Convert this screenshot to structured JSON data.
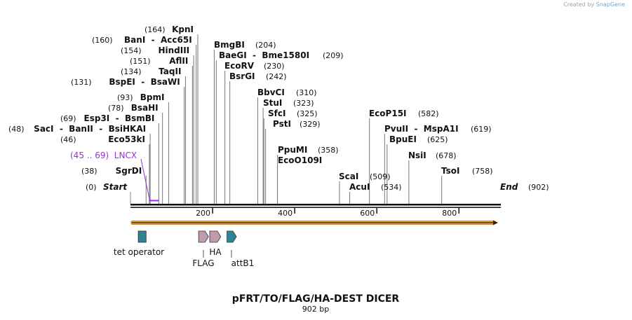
{
  "watermark": {
    "prefix": "Created by",
    "brand": "SnapGene"
  },
  "plasmid": {
    "name": "pFRT/TO/FLAG/HA-DEST DICER",
    "length_label": "902 bp",
    "start_label": "Start",
    "end_label": "End",
    "start_pos": "(0)",
    "end_pos": "(902)"
  },
  "ruler": {
    "ticks": [
      {
        "pos": 200,
        "label": "200"
      },
      {
        "pos": 400,
        "label": "400"
      },
      {
        "pos": 600,
        "label": "600"
      },
      {
        "pos": 800,
        "label": "800"
      }
    ]
  },
  "sites": [
    {
      "id": "kpni",
      "pos": 164,
      "pos_label": "(164)",
      "name": "KpnI"
    },
    {
      "id": "bani",
      "pos": 160,
      "pos_label": "(160)",
      "name": "BanI  -  Acc65I"
    },
    {
      "id": "hindiii",
      "pos": 154,
      "pos_label": "(154)",
      "name": "HindIII"
    },
    {
      "id": "aflii",
      "pos": 151,
      "pos_label": "(151)",
      "name": "AflII"
    },
    {
      "id": "taqii",
      "pos": 134,
      "pos_label": "(134)",
      "name": "TaqII"
    },
    {
      "id": "bspei",
      "pos": 131,
      "pos_label": "(131)",
      "name": "BspEI  -  BsaWI"
    },
    {
      "id": "bpmi",
      "pos": 93,
      "pos_label": "(93)",
      "name": "BpmI"
    },
    {
      "id": "bsahi",
      "pos": 78,
      "pos_label": "(78)",
      "name": "BsaHI"
    },
    {
      "id": "esp3i",
      "pos": 69,
      "pos_label": "(69)",
      "name": "Esp3I  -  BsmBI"
    },
    {
      "id": "saci",
      "pos": 48,
      "pos_label": "(48)",
      "name": "SacI  -  BanII  -  BsiHKAI"
    },
    {
      "id": "eco53ki",
      "pos": 46,
      "pos_label": "(46)",
      "name": "Eco53kI"
    },
    {
      "id": "sgrdi",
      "pos": 38,
      "pos_label": "(38)",
      "name": "SgrDI"
    },
    {
      "id": "bmgbi",
      "pos": 204,
      "pos_label": "(204)",
      "name": "BmgBI"
    },
    {
      "id": "baegi",
      "pos": 209,
      "pos_label": "(209)",
      "name": "BaeGI  -  Bme1580I"
    },
    {
      "id": "ecorv",
      "pos": 230,
      "pos_label": "(230)",
      "name": "EcoRV"
    },
    {
      "id": "bsrgi",
      "pos": 242,
      "pos_label": "(242)",
      "name": "BsrGI"
    },
    {
      "id": "bbvci",
      "pos": 310,
      "pos_label": "(310)",
      "name": "BbvCI"
    },
    {
      "id": "stui",
      "pos": 323,
      "pos_label": "(323)",
      "name": "StuI"
    },
    {
      "id": "sfci",
      "pos": 325,
      "pos_label": "(325)",
      "name": "SfcI"
    },
    {
      "id": "psti",
      "pos": 329,
      "pos_label": "(329)",
      "name": "PstI"
    },
    {
      "id": "ppumi",
      "pos": 358,
      "pos_label": "(358)",
      "name": "PpuMI"
    },
    {
      "id": "ecoo109i",
      "pos": 358,
      "pos_label": "",
      "name": "EcoO109I"
    },
    {
      "id": "scai",
      "pos": 509,
      "pos_label": "(509)",
      "name": "ScaI"
    },
    {
      "id": "acui",
      "pos": 534,
      "pos_label": "(534)",
      "name": "AcuI"
    },
    {
      "id": "ecop15i",
      "pos": 582,
      "pos_label": "(582)",
      "name": "EcoP15I"
    },
    {
      "id": "pvuii",
      "pos": 619,
      "pos_label": "(619)",
      "name": "PvuII  -  MspA1I"
    },
    {
      "id": "bpuei",
      "pos": 625,
      "pos_label": "(625)",
      "name": "BpuEI"
    },
    {
      "id": "nsii",
      "pos": 678,
      "pos_label": "(678)",
      "name": "NsiI"
    },
    {
      "id": "tsoi",
      "pos": 758,
      "pos_label": "(758)",
      "name": "TsoI"
    }
  ],
  "primer": {
    "label": "(45 .. 69)  LNCX",
    "start": 45,
    "end": 69,
    "color": "#9b30d9"
  },
  "features": [
    {
      "id": "tet-operator",
      "label": "tet operator",
      "start": 19,
      "end": 38,
      "shape": "box",
      "color": "#2f8595"
    },
    {
      "id": "flag",
      "label": "FLAG",
      "start": 166,
      "end": 190,
      "shape": "arrow",
      "color": "#c29aad"
    },
    {
      "id": "ha",
      "label": "HA",
      "start": 193,
      "end": 220,
      "shape": "arrow",
      "color": "#c29aad"
    },
    {
      "id": "attb1",
      "label": "attB1",
      "start": 235,
      "end": 258,
      "shape": "arrow",
      "color": "#2f8595"
    }
  ],
  "orf": {
    "color": "#e8a33c"
  }
}
